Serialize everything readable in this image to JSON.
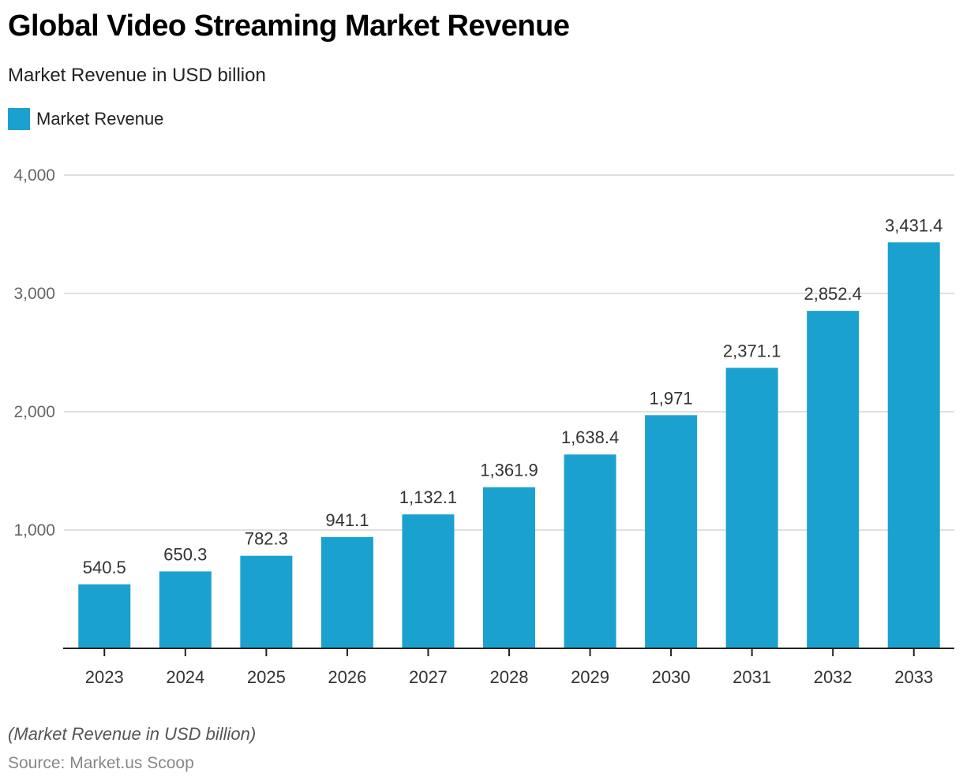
{
  "chart_data": {
    "type": "bar",
    "title": "Global Video Streaming Market Revenue",
    "subtitle": "Market Revenue in USD billion",
    "xlabel": "",
    "ylabel": "",
    "categories": [
      "2023",
      "2024",
      "2025",
      "2026",
      "2027",
      "2028",
      "2029",
      "2030",
      "2031",
      "2032",
      "2033"
    ],
    "series": [
      {
        "name": "Market Revenue",
        "color": "#1ba1cf",
        "values": [
          540.5,
          650.3,
          782.3,
          941.1,
          1132.1,
          1361.9,
          1638.4,
          1971,
          2371.1,
          2852.4,
          3431.4
        ],
        "labels": [
          "540.5",
          "650.3",
          "782.3",
          "941.1",
          "1,132.1",
          "1,361.9",
          "1,638.4",
          "1,971",
          "2,371.1",
          "2,852.4",
          "3,431.4"
        ]
      }
    ],
    "ylim": [
      0,
      4000
    ],
    "yticks": [
      1000,
      2000,
      3000,
      4000
    ],
    "ytick_labels": [
      "1,000",
      "2,000",
      "3,000",
      "4,000"
    ],
    "grid": true,
    "legend_position": "top-left"
  },
  "footer": {
    "note": "(Market Revenue in USD billion)",
    "source": "Source: Market.us Scoop"
  }
}
